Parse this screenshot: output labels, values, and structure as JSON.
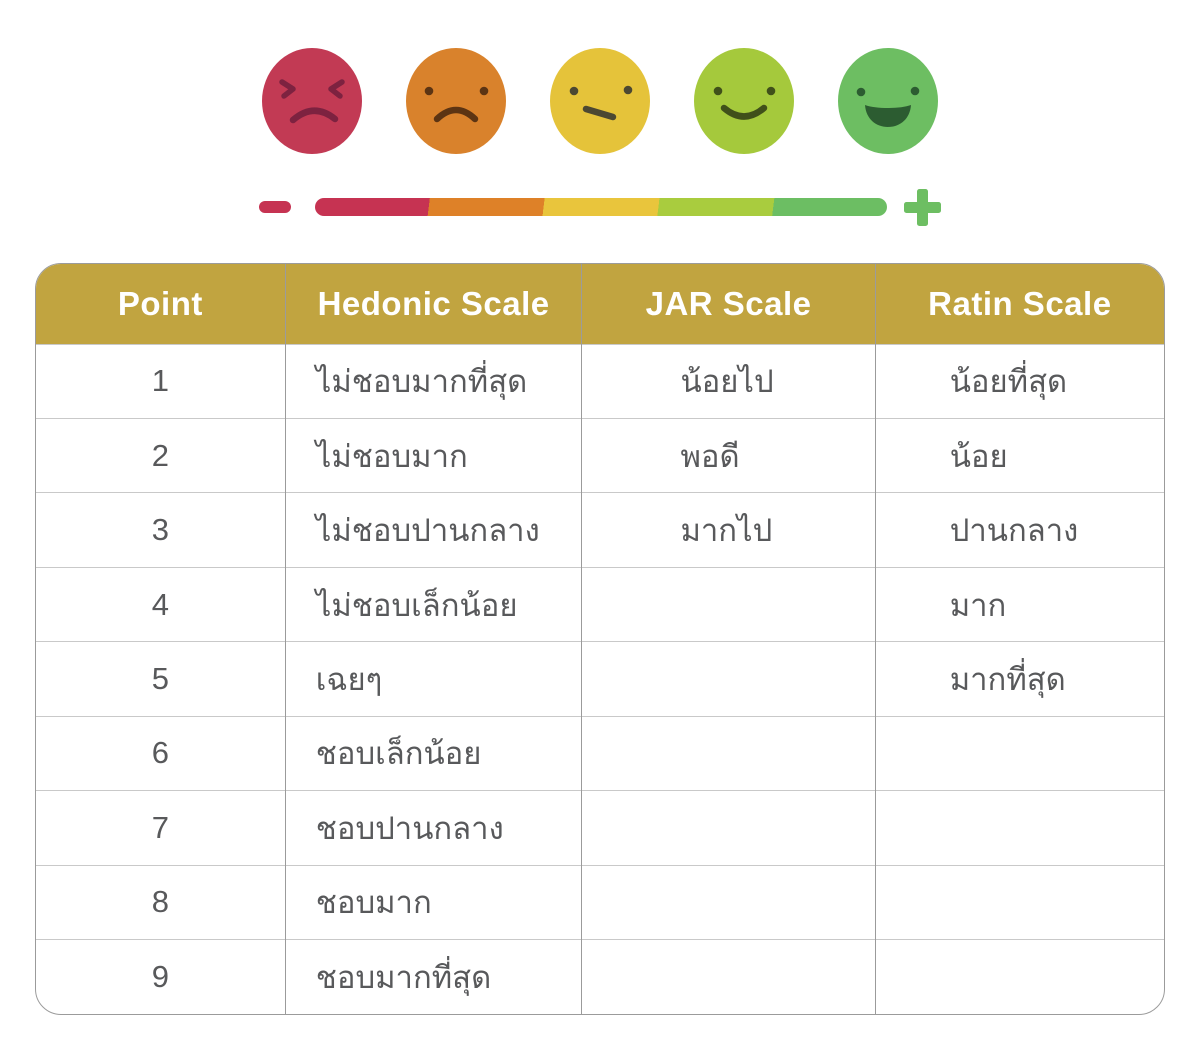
{
  "scale": {
    "faces": [
      {
        "name": "angry",
        "color": "#c23a54",
        "feature_color": "#7d2240"
      },
      {
        "name": "sad",
        "color": "#d9822c",
        "feature_color": "#5c3413"
      },
      {
        "name": "neutral",
        "color": "#e5c33a",
        "feature_color": "#4c4832"
      },
      {
        "name": "happy",
        "color": "#a5c93c",
        "feature_color": "#40501a"
      },
      {
        "name": "very-happy",
        "color": "#6dbe62",
        "feature_color": "#2c5c31"
      }
    ],
    "bar_colors": [
      "#c63352",
      "#de8128",
      "#e9c53c",
      "#a9cc3e",
      "#6cbe63"
    ],
    "minus_color": "#c63352",
    "plus_color": "#6dbe62"
  },
  "table": {
    "header_bg": "#c1a440",
    "columns": [
      "Point",
      "Hedonic Scale",
      "JAR Scale",
      "Ratin Scale"
    ],
    "row_keys": [
      "point",
      "hedonic",
      "jar",
      "ratin"
    ],
    "rows": [
      {
        "point": "1",
        "hedonic": "ไม่ชอบมากที่สุด",
        "jar": "น้อยไป",
        "ratin": "น้อยที่สุด"
      },
      {
        "point": "2",
        "hedonic": "ไม่ชอบมาก",
        "jar": "พอดี",
        "ratin": "น้อย"
      },
      {
        "point": "3",
        "hedonic": "ไม่ชอบปานกลาง",
        "jar": "มากไป",
        "ratin": "ปานกลาง"
      },
      {
        "point": "4",
        "hedonic": "ไม่ชอบเล็กน้อย",
        "jar": "",
        "ratin": "มาก"
      },
      {
        "point": "5",
        "hedonic": "เฉยๆ",
        "jar": "",
        "ratin": "มากที่สุด"
      },
      {
        "point": "6",
        "hedonic": "ชอบเล็กน้อย",
        "jar": "",
        "ratin": ""
      },
      {
        "point": "7",
        "hedonic": "ชอบปานกลาง",
        "jar": "",
        "ratin": ""
      },
      {
        "point": "8",
        "hedonic": "ชอบมาก",
        "jar": "",
        "ratin": ""
      },
      {
        "point": "9",
        "hedonic": "ชอบมากที่สุด",
        "jar": "",
        "ratin": ""
      }
    ]
  }
}
